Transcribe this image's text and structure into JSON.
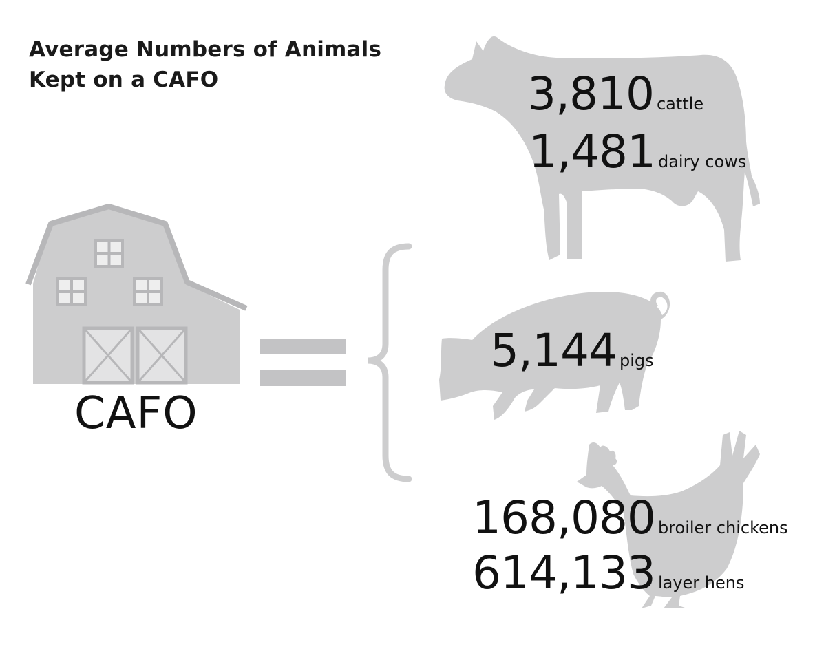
{
  "title": {
    "line1": "Average Numbers of Animals",
    "line2": "Kept on a CAFO"
  },
  "barn": {
    "label": "CAFO",
    "icon": "barn-icon"
  },
  "equals": {
    "icon": "equals-icon"
  },
  "bracket": {
    "icon": "left-curly-brace-icon"
  },
  "colors": {
    "silhouette": "#cdcdce",
    "barn_trim": "#b7b7b9",
    "text": "#111111"
  },
  "stats": {
    "cattle": {
      "value": "3,810",
      "unit": "cattle",
      "icon": "cow-icon"
    },
    "dairy": {
      "value": "1,481",
      "unit": "dairy cows",
      "icon": "cow-icon"
    },
    "pigs": {
      "value": "5,144",
      "unit": "pigs",
      "icon": "pig-icon"
    },
    "broilers": {
      "value": "168,080",
      "unit": "broiler chickens",
      "icon": "chicken-icon"
    },
    "layers": {
      "value": "614,133",
      "unit": "layer hens",
      "icon": "chicken-icon"
    }
  }
}
